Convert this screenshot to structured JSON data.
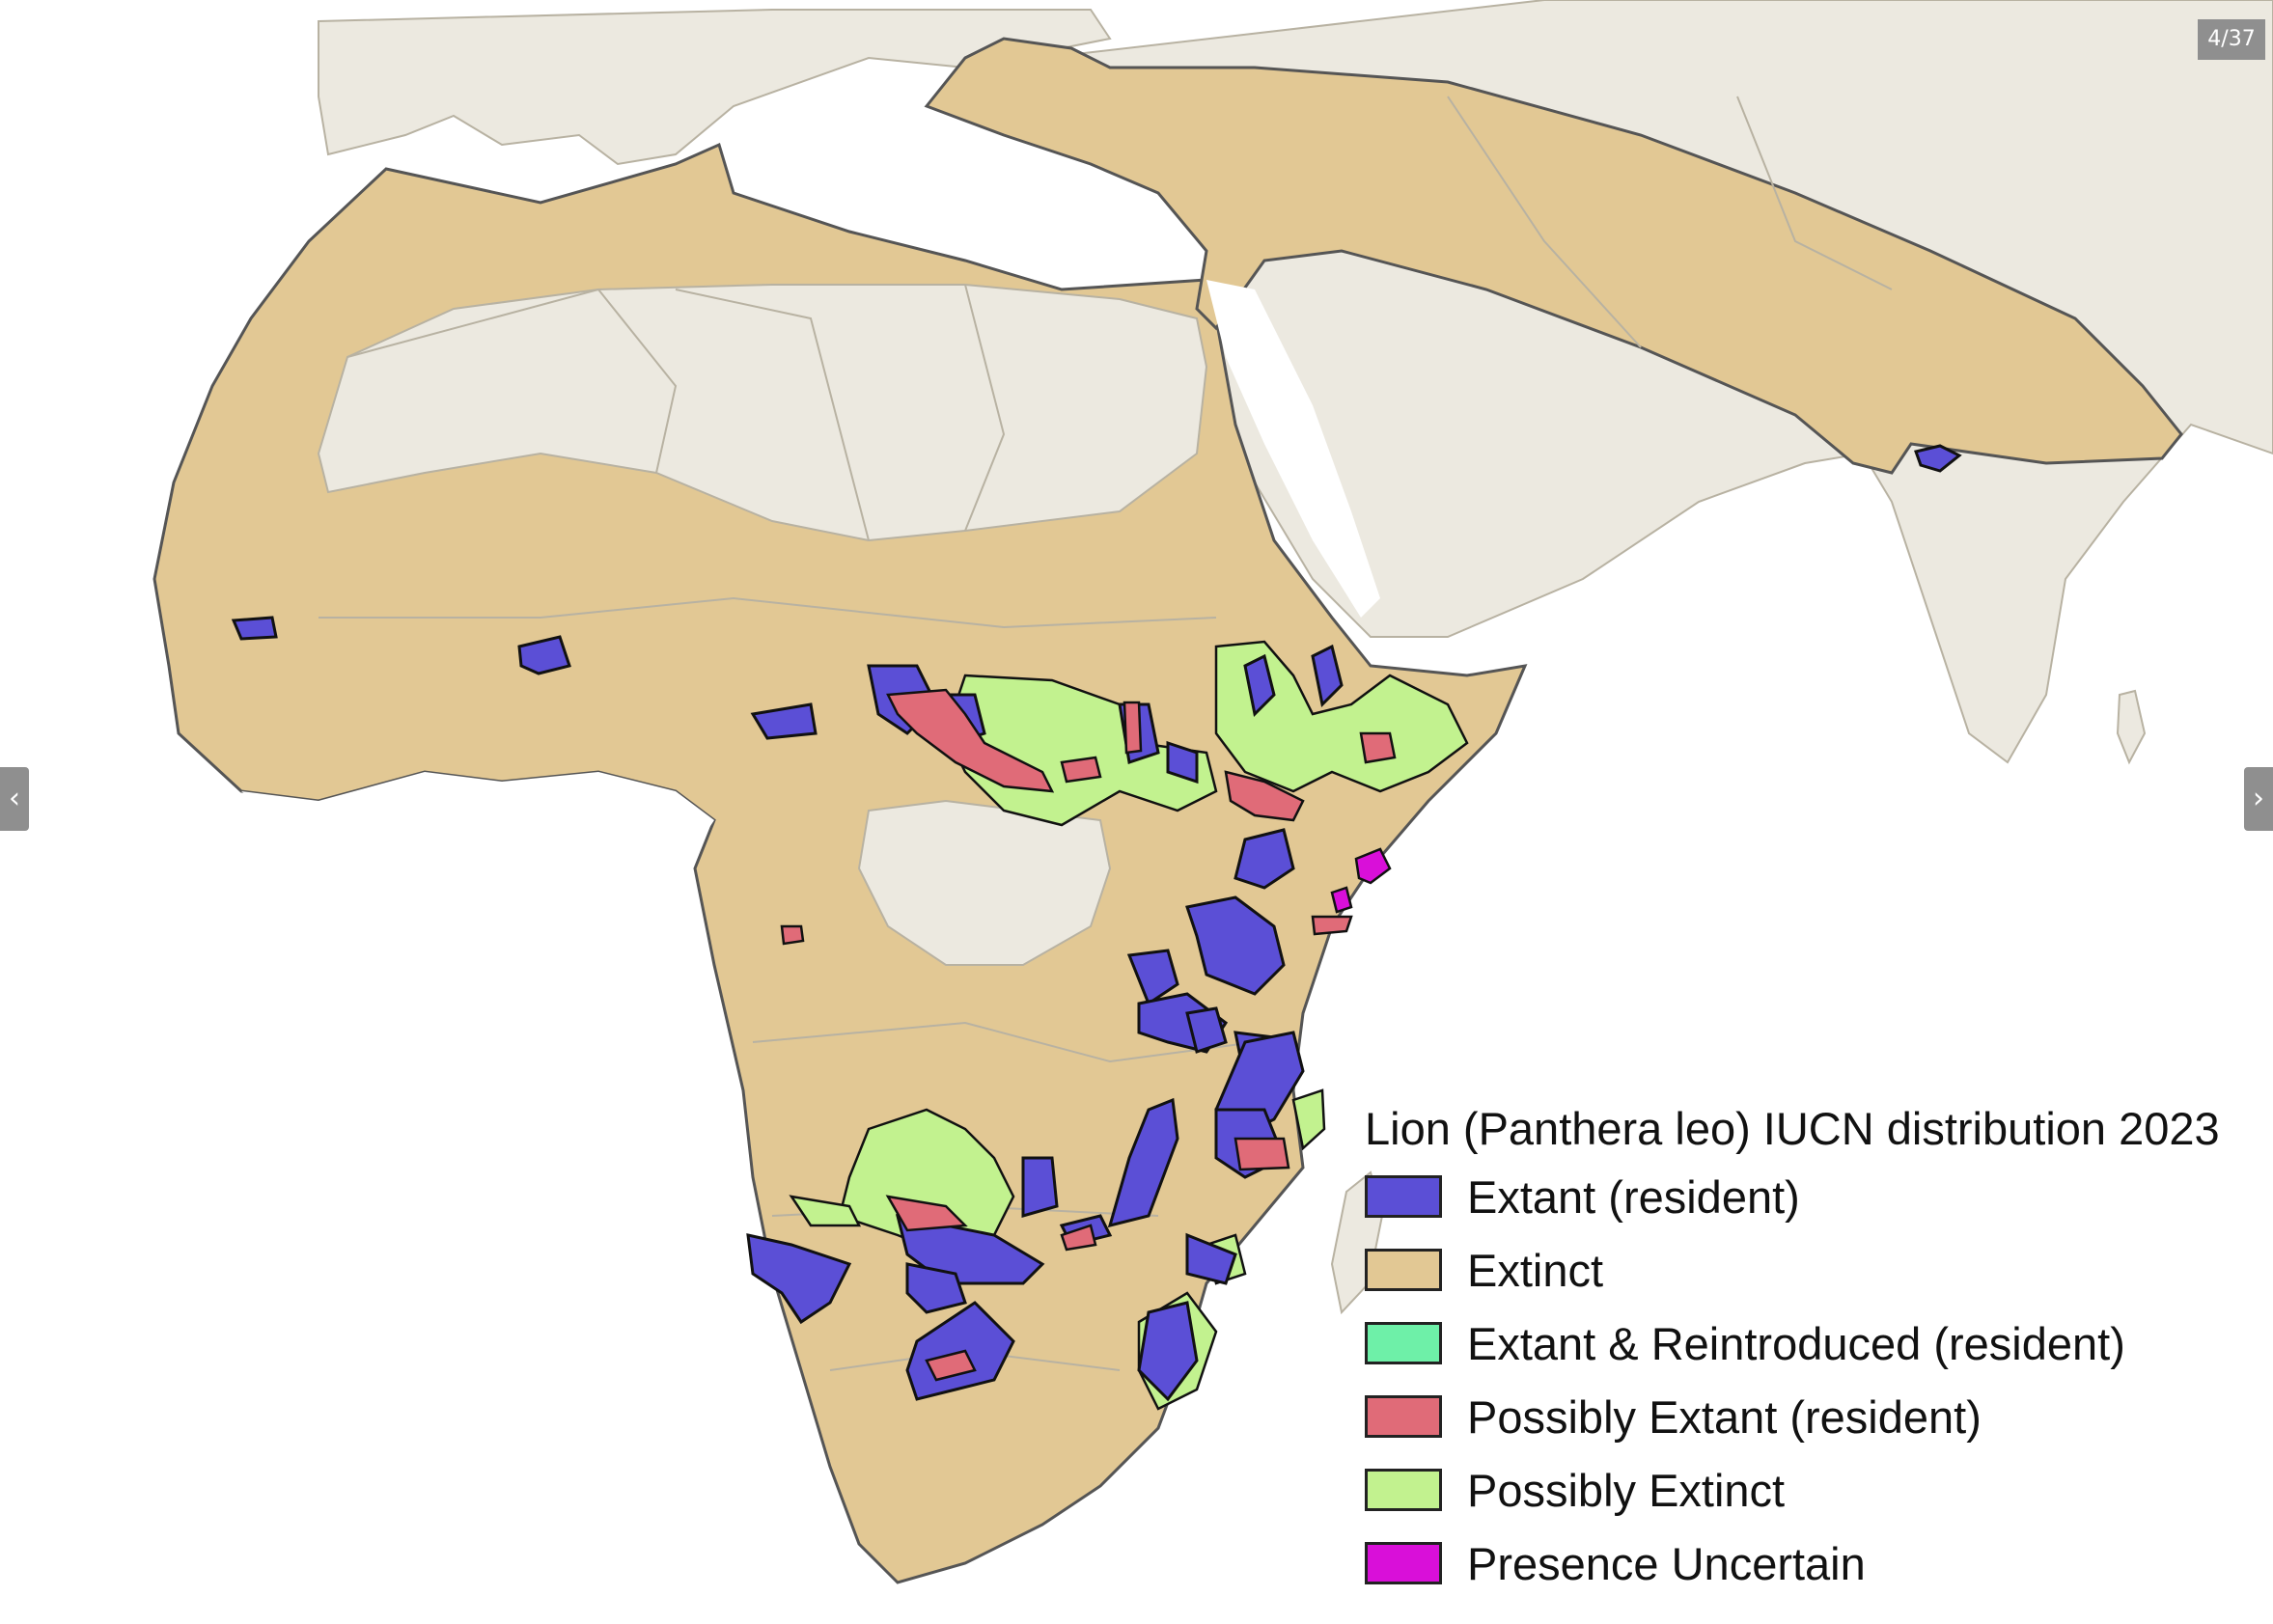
{
  "viewer": {
    "counter": "4/37",
    "prev_icon": "chevron-left-icon",
    "next_icon": "chevron-right-icon"
  },
  "map": {
    "land_color": "#ece9e0",
    "extinct_color": "#e2c894",
    "border_color": "#b8b2a2"
  },
  "legend": {
    "title": "Lion (Panthera leo) IUCN distribution 2023",
    "items": [
      {
        "label": "Extant (resident)",
        "color": "#5b4fd6"
      },
      {
        "label": "Extinct",
        "color": "#e2c894"
      },
      {
        "label": "Extant & Reintroduced (resident)",
        "color": "#6ef0a8"
      },
      {
        "label": "Possibly Extant (resident)",
        "color": "#e06b78"
      },
      {
        "label": "Possibly Extinct",
        "color": "#c2f28f"
      },
      {
        "label": "Presence Uncertain",
        "color": "#d90fd9"
      }
    ]
  }
}
